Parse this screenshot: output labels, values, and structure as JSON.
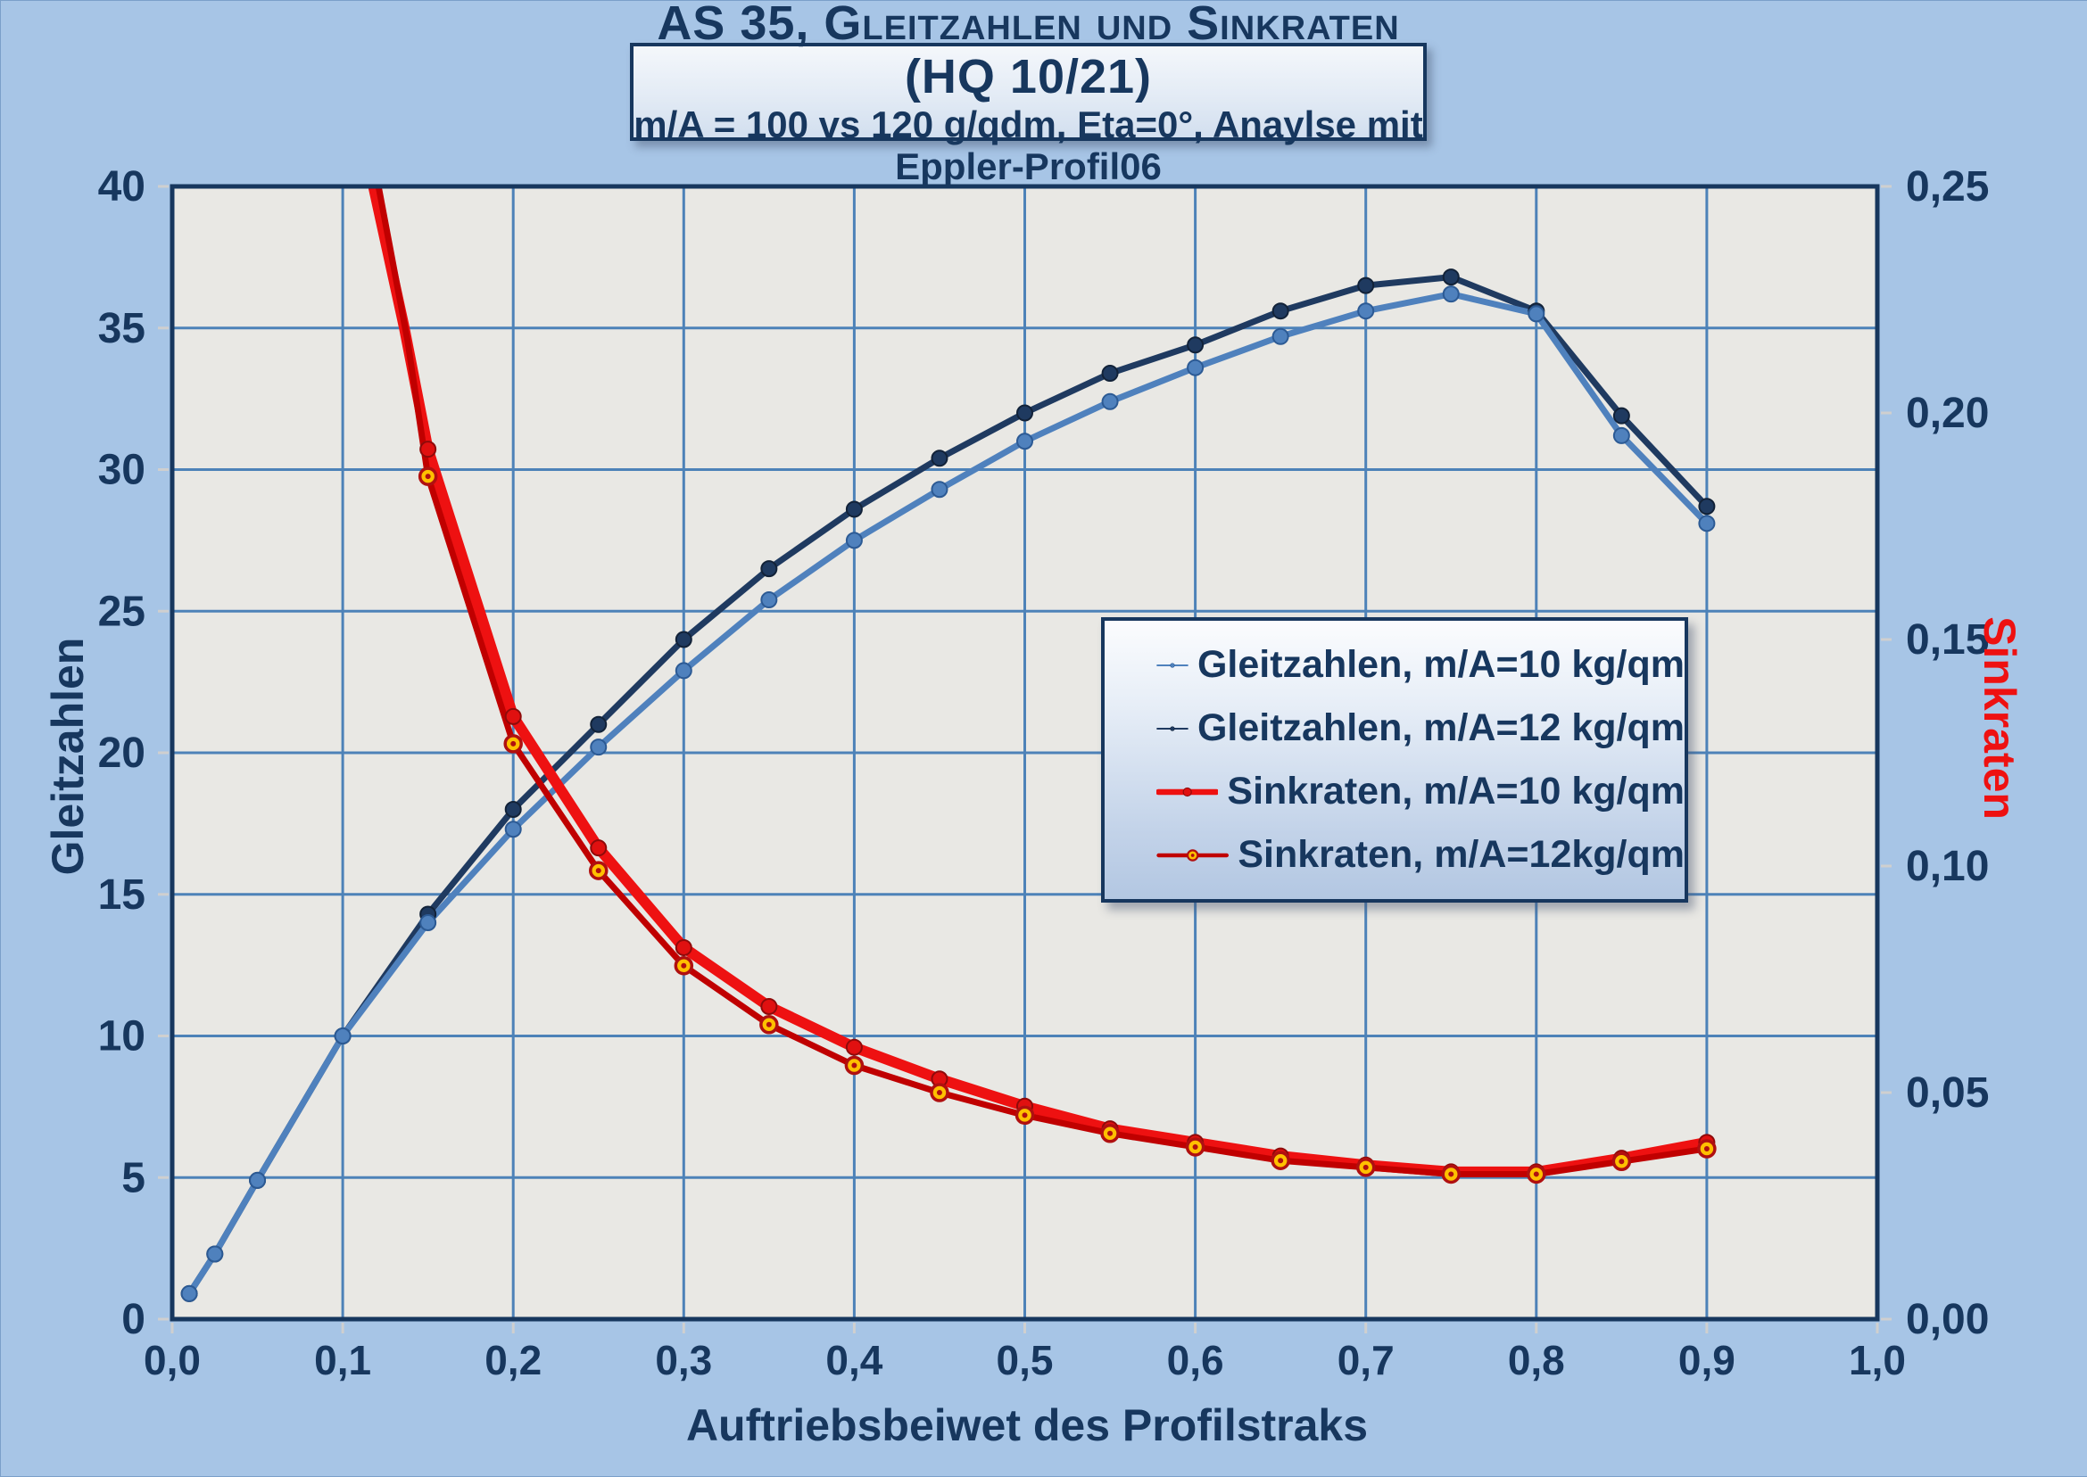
{
  "window": {
    "background": "#a7c5e6"
  },
  "title_box": {
    "line1": "AS 35, Gleitzahlen und Sinkraten (HQ 10/21)",
    "line2": "m/A = 100 vs 120 g/qdm, Eta=0°, Anaylse mit Eppler-Profil06"
  },
  "chart_data": {
    "type": "line",
    "title": "AS 35, Gleitzahlen und Sinkraten (HQ 10/21)",
    "subtitle": "m/A = 100 vs 120 g/qdm, Eta=0°, Anaylse mit Eppler-Profil06",
    "xlabel": "Auftriebsbeiwet des Profilstraks",
    "ylabel_left": "Gleitzahlen",
    "ylabel_right": "Sinkraten",
    "x_range": [
      0.0,
      1.0
    ],
    "y_left_range": [
      0,
      40
    ],
    "y_right_range": [
      0.0,
      0.25
    ],
    "x_tick_labels": [
      "0,0",
      "0,1",
      "0,2",
      "0,3",
      "0,4",
      "0,5",
      "0,6",
      "0,7",
      "0,8",
      "0,9",
      "1,0"
    ],
    "y_left_tick_labels": [
      "0",
      "5",
      "10",
      "15",
      "20",
      "25",
      "30",
      "35",
      "40"
    ],
    "y_right_tick_labels": [
      "0,00",
      "0,05",
      "0,10",
      "0,15",
      "0,20",
      "0,25"
    ],
    "grid": true,
    "legend_position": "inside-right",
    "plot_bg": "#e9e8e4",
    "grid_color": "#4d82b8",
    "border_color": "#17375e",
    "series": [
      {
        "name": "Gleitzahlen, m/A=12 kg/qm",
        "axis": "left",
        "color": "#1f3a60",
        "line_width": 7,
        "marker": "circle",
        "marker_fill": "#1f3a60",
        "marker_stroke": "#122238",
        "x": [
          0.01,
          0.025,
          0.05,
          0.1,
          0.15,
          0.2,
          0.25,
          0.3,
          0.35,
          0.4,
          0.45,
          0.5,
          0.55,
          0.6,
          0.65,
          0.7,
          0.75,
          0.8,
          0.85,
          0.9
        ],
        "values": [
          0.9,
          2.3,
          4.9,
          10.0,
          14.3,
          18.0,
          21.0,
          24.0,
          26.5,
          28.6,
          30.4,
          32.0,
          33.4,
          34.4,
          35.6,
          36.5,
          36.8,
          35.6,
          31.9,
          28.7
        ]
      },
      {
        "name": "Gleitzahlen, m/A=10 kg/qm",
        "axis": "left",
        "color": "#4f81bd",
        "line_width": 7,
        "marker": "circle",
        "marker_fill": "#4f81bd",
        "marker_stroke": "#2c5a94",
        "x": [
          0.01,
          0.025,
          0.05,
          0.1,
          0.15,
          0.2,
          0.25,
          0.3,
          0.35,
          0.4,
          0.45,
          0.5,
          0.55,
          0.6,
          0.65,
          0.7,
          0.75,
          0.8,
          0.85,
          0.9
        ],
        "values": [
          0.9,
          2.3,
          4.9,
          10.0,
          14.0,
          17.3,
          20.2,
          22.9,
          25.4,
          27.5,
          29.3,
          31.0,
          32.4,
          33.6,
          34.7,
          35.6,
          36.2,
          35.5,
          31.2,
          28.1
        ]
      },
      {
        "name": "Sinkraten, m/A=10 kg/qm",
        "axis": "right",
        "color": "#ee1111",
        "line_width": 12,
        "marker": "circle",
        "marker_fill": "#e01010",
        "marker_stroke": "#8f0a0a",
        "entry_path": [
          [
            0.118,
            0.25
          ],
          [
            0.136,
            0.219
          ]
        ],
        "x": [
          0.15,
          0.2,
          0.25,
          0.3,
          0.35,
          0.4,
          0.45,
          0.5,
          0.55,
          0.6,
          0.65,
          0.7,
          0.75,
          0.8,
          0.85,
          0.9
        ],
        "values": [
          0.192,
          0.133,
          0.104,
          0.082,
          0.069,
          0.06,
          0.053,
          0.047,
          0.042,
          0.039,
          0.036,
          0.034,
          0.0325,
          0.0325,
          0.0355,
          0.039
        ]
      },
      {
        "name": "Sinkraten, m/A=12kg/qm",
        "axis": "right",
        "color": "#c00000",
        "line_width": 7,
        "marker": "ring",
        "marker_fill": "#ffc000",
        "marker_stroke": "#b01010",
        "entry_path": [
          [
            0.121,
            0.25
          ],
          [
            0.138,
            0.216
          ]
        ],
        "x": [
          0.15,
          0.2,
          0.25,
          0.3,
          0.35,
          0.4,
          0.45,
          0.5,
          0.55,
          0.6,
          0.65,
          0.7,
          0.75,
          0.8,
          0.85,
          0.9
        ],
        "values": [
          0.186,
          0.127,
          0.099,
          0.078,
          0.065,
          0.056,
          0.05,
          0.045,
          0.041,
          0.038,
          0.035,
          0.0335,
          0.032,
          0.032,
          0.0348,
          0.0376
        ]
      }
    ]
  },
  "legend": {
    "items": [
      {
        "label": "Gleitzahlen, m/A=10 kg/qm",
        "series": 1
      },
      {
        "label": "Gleitzahlen, m/A=12 kg/qm",
        "series": 0
      },
      {
        "label": "Sinkraten, m/A=10 kg/qm",
        "series": 2
      },
      {
        "label": "Sinkraten, m/A=12kg/qm",
        "series": 3
      }
    ]
  },
  "colors": {
    "text": "#17375e",
    "right_axis_title": "#ee1111",
    "tick_mark": "#cfcfcf"
  }
}
